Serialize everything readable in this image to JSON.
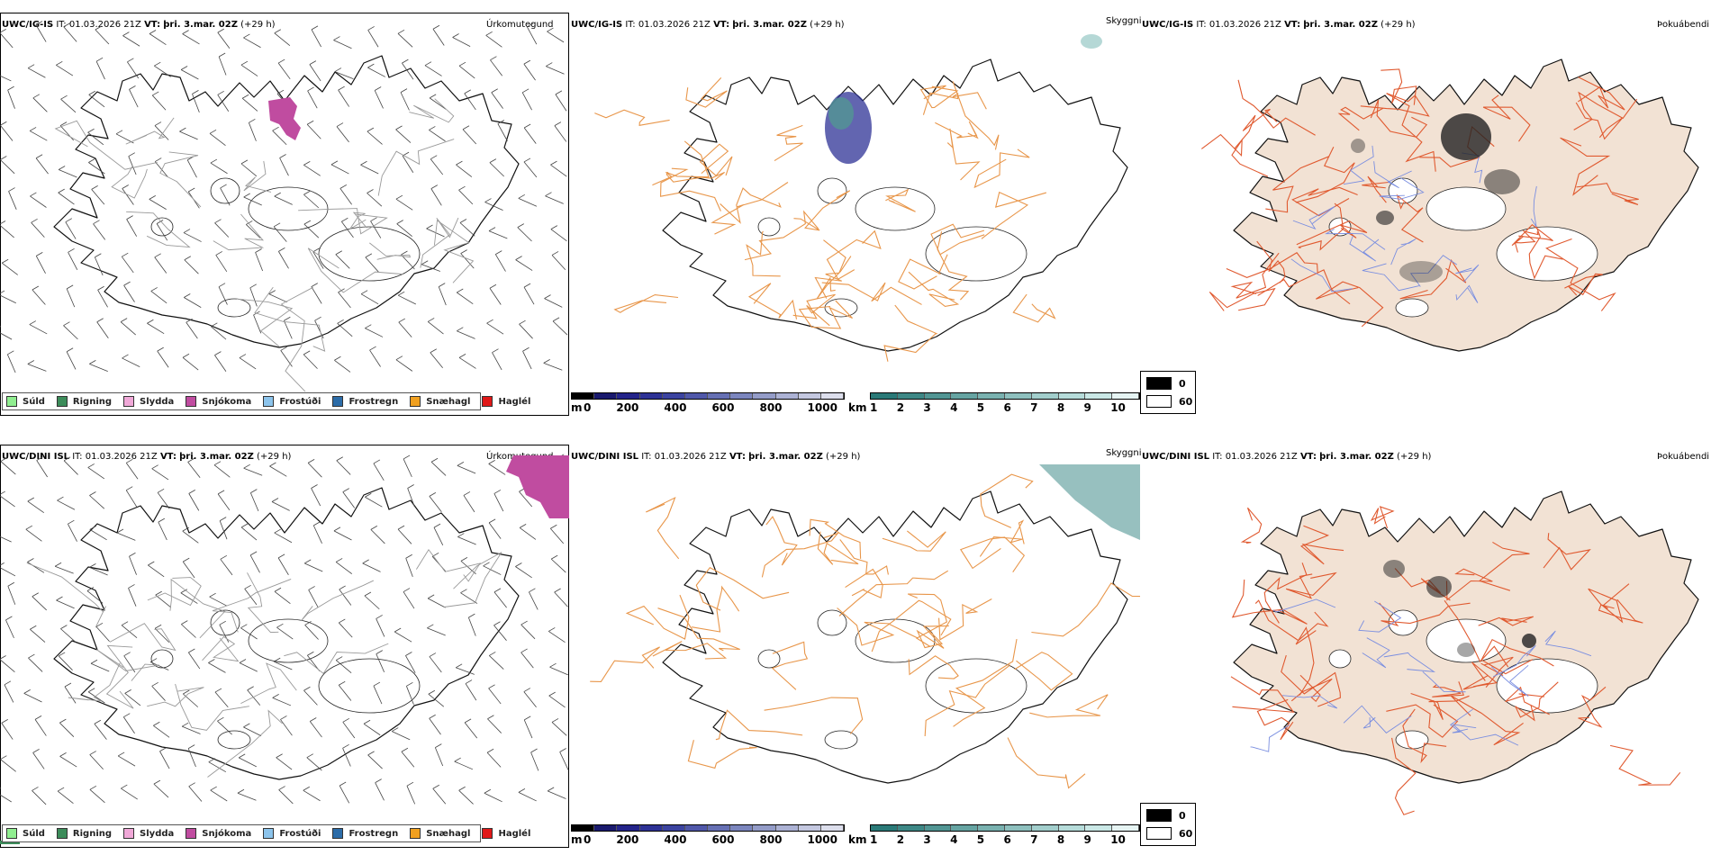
{
  "rows": [
    {
      "model": "UWC/IG-IS",
      "it_label": "IT:",
      "it_value": "01.03.2026 21Z",
      "vt_label": "VT:",
      "vt_value": "þri. 3.mar. 02Z",
      "lead": "(+29 h)",
      "titles": [
        "Úrkomutegund",
        "Skyggni",
        "Þokuábendi"
      ]
    },
    {
      "model": "UWC/DINI ISL",
      "it_label": "IT:",
      "it_value": "01.03.2026 21Z",
      "vt_label": "VT:",
      "vt_value": "þri. 3.mar. 02Z",
      "lead": "(+29 h)",
      "titles": [
        "Úrkomutegund",
        "Skyggni",
        "Þokuábendi"
      ]
    }
  ],
  "precip_legend": [
    {
      "label": "Súld",
      "color": "#90ee90"
    },
    {
      "label": "Rigning",
      "color": "#3c8c5a"
    },
    {
      "label": "Slydda",
      "color": "#f0a8d8"
    },
    {
      "label": "Snjókoma",
      "color": "#c04ca0"
    },
    {
      "label": "Frostúði",
      "color": "#8cc4ec"
    },
    {
      "label": "Frostregn",
      "color": "#2c6ca8"
    },
    {
      "label": "Snæhagl",
      "color": "#f0a020"
    },
    {
      "label": "Haglél",
      "color": "#e01818"
    }
  ],
  "height_bar": {
    "unit": "m",
    "ticks": [
      "0",
      "200",
      "400",
      "600",
      "800",
      "1000"
    ],
    "colors": [
      "#000000",
      "#1a1a6e",
      "#24248a",
      "#2e3296",
      "#3c44a0",
      "#5058aa",
      "#6670b4",
      "#7c86be",
      "#949cc8",
      "#acb2d4",
      "#c4c8e0",
      "#dcdeec"
    ]
  },
  "vis_bar": {
    "unit": "km",
    "ticks": [
      "1",
      "2",
      "3",
      "4",
      "5",
      "6",
      "7",
      "8",
      "9",
      "10"
    ],
    "colors": [
      "#2a7a78",
      "#3e8886",
      "#529694",
      "#66a4a2",
      "#7ab2b0",
      "#8ec0be",
      "#a2cecc",
      "#b6dcda",
      "#cae8e6",
      "#e6f4f3"
    ]
  },
  "fog_legend": {
    "top_label": "0",
    "bottom_label": "60",
    "top_color": "#000000",
    "bottom_color": "#ffffff"
  }
}
